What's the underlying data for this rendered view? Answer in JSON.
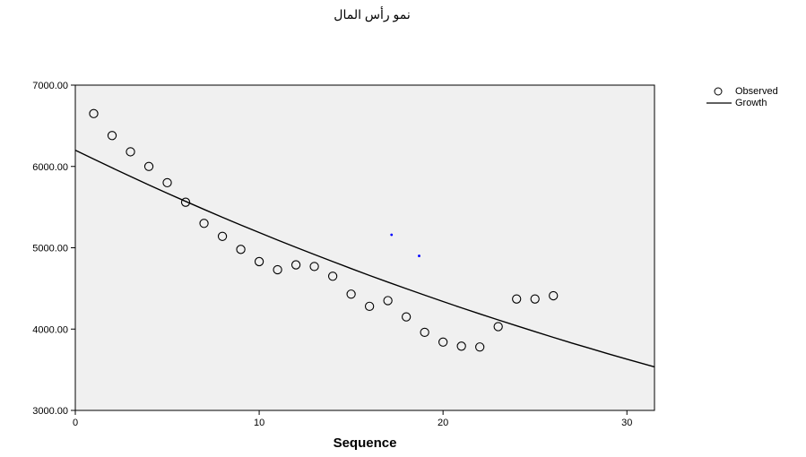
{
  "title": "نمو رأس المال",
  "legend": {
    "observed_label": "Observed",
    "growth_label": "Growth"
  },
  "chart_data": {
    "type": "scatter",
    "title": "نمو رأس المال",
    "xlabel": "Sequence",
    "ylabel": "",
    "xlim": [
      0,
      31.5
    ],
    "ylim": [
      3000,
      7000
    ],
    "x_ticks": [
      0,
      10,
      20,
      30
    ],
    "x_tick_labels": [
      "0",
      "10",
      "20",
      "30"
    ],
    "y_ticks": [
      3000,
      4000,
      5000,
      6000,
      7000
    ],
    "y_tick_labels": [
      "3000.00",
      "4000.00",
      "5000.00",
      "6000.00",
      "7000.00"
    ],
    "grid": false,
    "legend_position": "top-right outside",
    "plot_background": "#f0f0f0",
    "series": [
      {
        "name": "Observed",
        "type": "scatter",
        "marker": "open-circle",
        "color": "#000000",
        "x": [
          1,
          2,
          3,
          4,
          5,
          6,
          7,
          8,
          9,
          10,
          11,
          12,
          13,
          14,
          15,
          16,
          17,
          18,
          19,
          20,
          21,
          22,
          23,
          24,
          25,
          26
        ],
        "y": [
          6650,
          6380,
          6180,
          6000,
          5800,
          5560,
          5300,
          5140,
          4980,
          4830,
          4730,
          4790,
          4770,
          4650,
          4430,
          4280,
          4350,
          4150,
          3960,
          3840,
          3790,
          3780,
          4030,
          4370,
          4370,
          4410
        ]
      },
      {
        "name": "Growth",
        "type": "line",
        "color": "#000000",
        "x": [
          0,
          1,
          2,
          3,
          4,
          5,
          6,
          7,
          8,
          9,
          10,
          11,
          12,
          13,
          14,
          15,
          16,
          17,
          18,
          19,
          20,
          21,
          22,
          23,
          24,
          25,
          26,
          27,
          28,
          29,
          30,
          31.5
        ],
        "y": [
          6200,
          6091,
          5983,
          5877,
          5773,
          5671,
          5571,
          5472,
          5375,
          5280,
          5187,
          5095,
          5005,
          4917,
          4830,
          4744,
          4660,
          4578,
          4497,
          4417,
          4339,
          4262,
          4187,
          4113,
          4040,
          3969,
          3898,
          3829,
          3762,
          3695,
          3630,
          3535
        ]
      }
    ],
    "annotations": [
      {
        "type": "marker",
        "x": 17.2,
        "y": 5160,
        "color": "#0000ff"
      },
      {
        "type": "marker",
        "x": 18.7,
        "y": 4900,
        "color": "#0000ff"
      }
    ]
  }
}
